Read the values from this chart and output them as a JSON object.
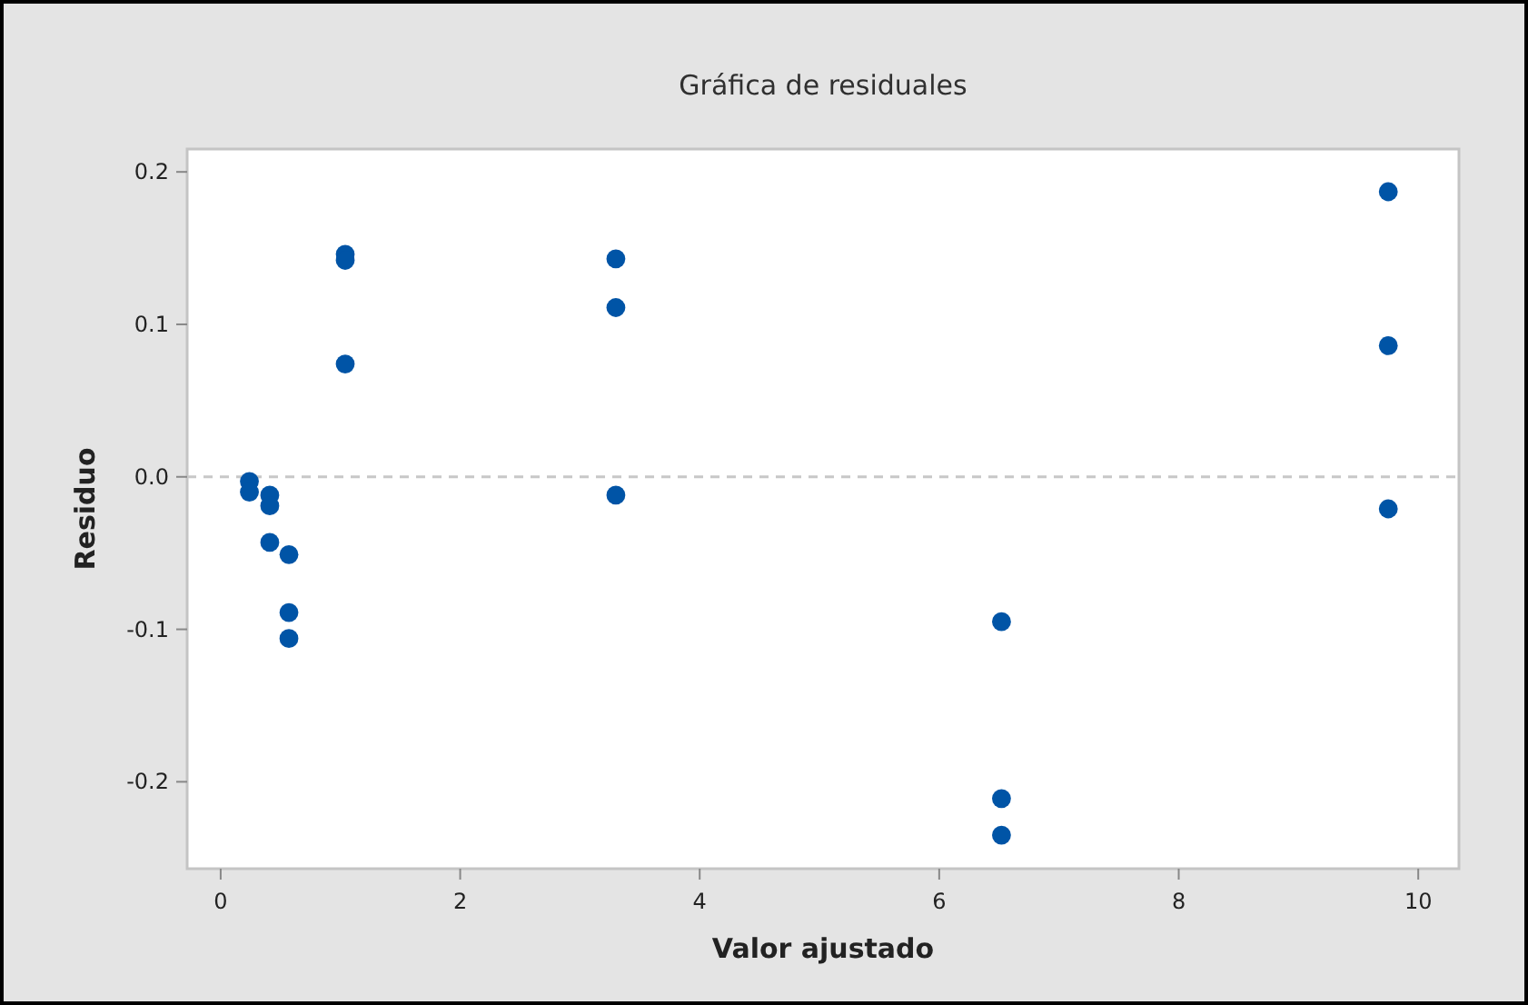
{
  "chart_data": {
    "type": "scatter",
    "title": "Gráfica de residuales",
    "xlabel": "Valor ajustado",
    "ylabel": "Residuo",
    "x": [
      0.24,
      0.24,
      0.41,
      0.41,
      0.41,
      0.57,
      0.57,
      0.57,
      1.04,
      1.04,
      1.04,
      3.3,
      3.3,
      3.3,
      6.52,
      6.52,
      6.52,
      9.75,
      9.75,
      9.75
    ],
    "series": [
      {
        "color": "#0054a6",
        "values": [
          -0.003,
          -0.01,
          -0.012,
          -0.019,
          -0.043,
          -0.051,
          -0.089,
          -0.106,
          0.146,
          0.142,
          0.074,
          0.143,
          0.111,
          -0.012,
          -0.095,
          -0.211,
          -0.235,
          0.187,
          0.086,
          -0.021
        ]
      }
    ],
    "xlim": [
      -0.28,
      10.34
    ],
    "ylim": [
      -0.257,
      0.215
    ],
    "xticks": [
      0,
      2,
      4,
      6,
      8,
      10
    ],
    "yticks": [
      {
        "value": -0.2,
        "label": "-0.2"
      },
      {
        "value": -0.1,
        "label": "-0.1"
      },
      {
        "value": 0,
        "label": "0.0"
      },
      0.1,
      0.2
    ],
    "ref_lines": [
      {
        "axis": "y",
        "value": 0,
        "color": "#c8c8c8",
        "line_style": "dashed"
      }
    ],
    "marker": "circle"
  }
}
